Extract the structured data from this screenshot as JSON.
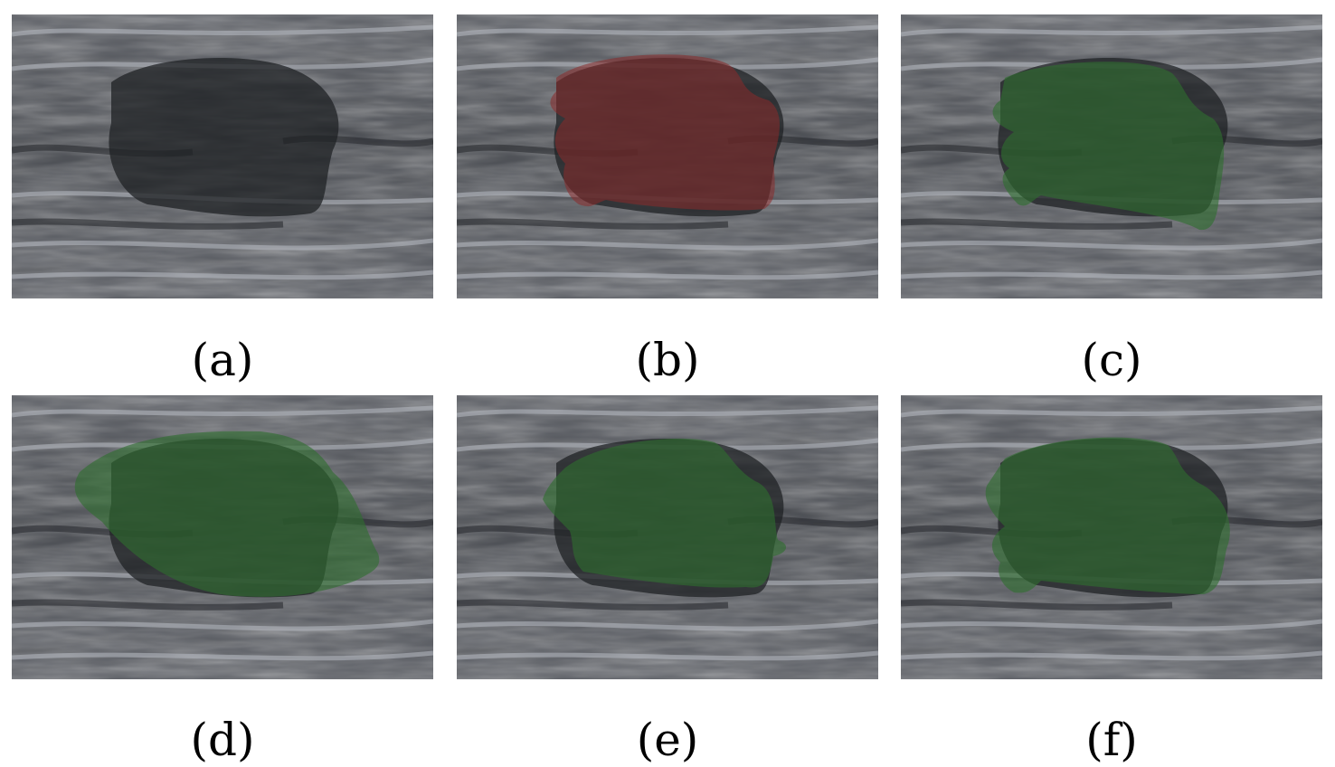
{
  "panels": [
    {
      "id": "a",
      "caption": "(a)",
      "overlay": "none",
      "overlay_color": ""
    },
    {
      "id": "b",
      "caption": "(b)",
      "overlay": "ground-truth-mask",
      "overlay_color": "#8b2a2a"
    },
    {
      "id": "c",
      "caption": "(c)",
      "overlay": "predicted-mask",
      "overlay_color": "#2f6e2f"
    },
    {
      "id": "d",
      "caption": "(d)",
      "overlay": "predicted-mask",
      "overlay_color": "#2f6e2f"
    },
    {
      "id": "e",
      "caption": "(e)",
      "overlay": "predicted-mask",
      "overlay_color": "#2f6e2f"
    },
    {
      "id": "f",
      "caption": "(f)",
      "overlay": "predicted-mask",
      "overlay_color": "#2f6e2f"
    }
  ]
}
